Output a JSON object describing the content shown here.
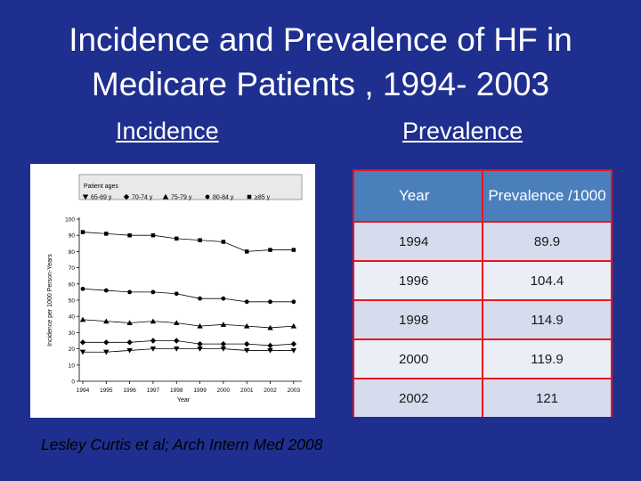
{
  "slide": {
    "title_line1": "Incidence and Prevalence of HF in",
    "title_line2": "Medicare Patients , 1994- 2003",
    "incidence_heading": "Incidence",
    "prevalence_heading": "Prevalence",
    "citation": "Lesley Curtis et al; Arch Intern Med 2008"
  },
  "table": {
    "headers": [
      "Year",
      "Prevalence /1000"
    ],
    "rows": [
      [
        "1994",
        "89.9"
      ],
      [
        "1996",
        "104.4"
      ],
      [
        "1998",
        "114.9"
      ],
      [
        "2000",
        "119.9"
      ],
      [
        "2002",
        "121"
      ]
    ]
  },
  "chart_data": {
    "type": "line",
    "title": "",
    "xlabel": "Year",
    "ylabel": "Incidence per 1000 Person-Years",
    "legend_title": "Patient ages",
    "legend_position": "top",
    "ylim": [
      0,
      100
    ],
    "yticks": [
      0,
      10,
      20,
      30,
      40,
      50,
      60,
      70,
      80,
      90,
      100
    ],
    "grid": false,
    "categories": [
      "1994",
      "1995",
      "1996",
      "1997",
      "1998",
      "1999",
      "2000",
      "2001",
      "2002",
      "2003"
    ],
    "series": [
      {
        "name": "65-69 y",
        "marker": "triangle-down",
        "values": [
          18,
          18,
          19,
          20,
          20,
          20,
          20,
          19,
          19,
          19
        ]
      },
      {
        "name": "70-74 y",
        "marker": "diamond",
        "values": [
          24,
          24,
          24,
          25,
          25,
          23,
          23,
          23,
          22,
          23
        ]
      },
      {
        "name": "75-79 y",
        "marker": "triangle-up",
        "values": [
          38,
          37,
          36,
          37,
          36,
          34,
          35,
          34,
          33,
          34
        ]
      },
      {
        "name": "80-84 y",
        "marker": "circle",
        "values": [
          57,
          56,
          55,
          55,
          54,
          51,
          51,
          49,
          49,
          49
        ]
      },
      {
        "name": "≥85 y",
        "marker": "square",
        "values": [
          92,
          91,
          90,
          90,
          88,
          87,
          86,
          80,
          81,
          81
        ]
      }
    ]
  }
}
